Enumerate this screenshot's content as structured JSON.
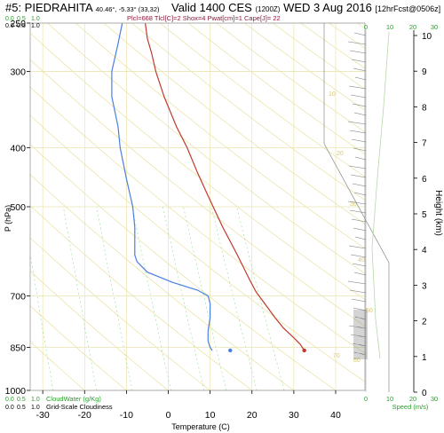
{
  "header": {
    "station": "#5: PIEDRAHITA",
    "coords": "40.46°, -5.33° (33,32)",
    "valid": "Valid 1400 CES",
    "utc": "(1200Z)",
    "date": "WED 3 Aug 2016",
    "fcst": "[12hrFcst@0506z]",
    "params": "Plcl=668 Tlcl[C]=2 Shox=4 Pwat[cm]=1 Cape[J]= 22"
  },
  "colors": {
    "temperature": "#c0392b",
    "dewpoint": "#4a7fe0",
    "isotherm": "#e8e0a0",
    "adiabat": "#e8dc90",
    "mixing_ratio": "#7ed67e",
    "axis": "#000000",
    "green_text": "#2aa02a"
  },
  "top_scale": {
    "cloudwater": [
      "0.0",
      "0.5",
      "1.0"
    ],
    "cloudiness": [
      "0.0",
      "0.5",
      "1.0"
    ]
  },
  "bottom_scale": {
    "cloudwater_ticks": [
      "0.0",
      "0.5",
      "1.0"
    ],
    "cloudwater_label": "CloudWater (g/Kg)",
    "cloudiness_ticks": [
      "0.0",
      "0.5",
      "1.0"
    ],
    "cloudiness_label": "Grid-Scale Cloudiness"
  },
  "speed_axis": {
    "ticks": [
      "0",
      "10",
      "20",
      "30"
    ],
    "label": "Speed (m/s)"
  },
  "chart_data": {
    "type": "line",
    "title": "",
    "xlabel": "Temperature (C)",
    "ylabel": "P (hPa)",
    "y2label": "Height (km)",
    "x_ticks": [
      -30,
      -20,
      -10,
      0,
      10,
      20,
      30,
      40
    ],
    "x_range": [
      -33,
      47
    ],
    "p_ticks": [
      250,
      300,
      400,
      500,
      700,
      850,
      1000
    ],
    "p_range": [
      250,
      1000
    ],
    "height_ticks": [
      0,
      1,
      2,
      3,
      4,
      5,
      6,
      7,
      8,
      9,
      10
    ],
    "series": [
      {
        "name": "",
        "role": "temperature",
        "points": [
          [
            -5.5,
            250
          ],
          [
            -5,
            265
          ],
          [
            -4,
            280
          ],
          [
            -3,
            300
          ],
          [
            -1,
            330
          ],
          [
            2,
            370
          ],
          [
            4.5,
            400
          ],
          [
            7,
            440
          ],
          [
            9.5,
            480
          ],
          [
            13,
            540
          ],
          [
            16.5,
            600
          ],
          [
            19.5,
            660
          ],
          [
            21,
            690
          ],
          [
            23,
            720
          ],
          [
            25.5,
            760
          ],
          [
            27.5,
            790
          ],
          [
            30,
            820
          ],
          [
            31.5,
            840
          ],
          [
            32.5,
            860
          ]
        ]
      },
      {
        "name": "",
        "role": "dewpoint",
        "points": [
          [
            -11,
            250
          ],
          [
            -12,
            270
          ],
          [
            -13.5,
            300
          ],
          [
            -13.5,
            330
          ],
          [
            -12,
            370
          ],
          [
            -11.5,
            400
          ],
          [
            -10,
            450
          ],
          [
            -8.5,
            500
          ],
          [
            -8,
            540
          ],
          [
            -8,
            580
          ],
          [
            -8,
            600
          ],
          [
            -7.5,
            615
          ],
          [
            -5,
            640
          ],
          [
            1,
            665
          ],
          [
            7,
            685
          ],
          [
            9.5,
            700
          ],
          [
            10,
            720
          ],
          [
            10,
            760
          ],
          [
            9.5,
            800
          ],
          [
            9.5,
            830
          ],
          [
            10,
            850
          ],
          [
            10.5,
            860
          ]
        ]
      }
    ],
    "surface_marks": [
      {
        "role": "temperature",
        "x": 32.5,
        "p": 860
      },
      {
        "role": "dewpoint",
        "x": 14.8,
        "p": 860
      }
    ],
    "adiabat_labels": [
      "10",
      "20",
      "30",
      "40",
      "50",
      "60",
      "70"
    ],
    "wind_profile": {
      "speed_ticks": [
        0,
        10,
        20,
        30
      ],
      "terrain_height_km": 1.0
    }
  }
}
